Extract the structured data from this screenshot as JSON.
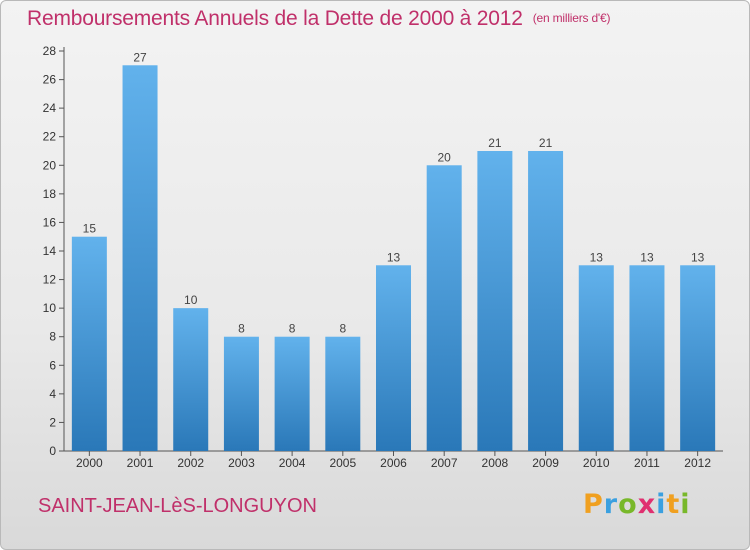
{
  "title": "Remboursements Annuels de la Dette de 2000 à 2012",
  "unit": "(en milliers d'€)",
  "commune": "SAINT-JEAN-LèS-LONGUYON",
  "logo": {
    "letters": [
      "P",
      "r",
      "o",
      "x",
      "i",
      "t",
      "i"
    ],
    "colors": [
      "#f0a020",
      "#3aa0e0",
      "#78b82a",
      "#e03070",
      "#3aa0e0",
      "#f0a020",
      "#78b82a"
    ]
  },
  "colors": {
    "title": "#c0306a",
    "bar_light": "#62b2ec",
    "bar_dark": "#2a78b8",
    "label": "#444444"
  },
  "chart_data": {
    "type": "bar",
    "categories": [
      "2000",
      "2001",
      "2002",
      "2003",
      "2004",
      "2005",
      "2006",
      "2007",
      "2008",
      "2009",
      "2010",
      "2011",
      "2012"
    ],
    "values": [
      15,
      27,
      10,
      8,
      8,
      8,
      13,
      20,
      21,
      21,
      13,
      13,
      13
    ],
    "data_labels": [
      "15",
      "27",
      "10",
      "8",
      "8",
      "8",
      "13",
      "20",
      "21",
      "21",
      "13",
      "13",
      "13"
    ],
    "y_ticks": [
      "0",
      "2",
      "4",
      "6",
      "8",
      "10",
      "12",
      "14",
      "16",
      "18",
      "20",
      "22",
      "24",
      "26",
      "28"
    ],
    "ylim": [
      0,
      28
    ],
    "grid": false
  }
}
